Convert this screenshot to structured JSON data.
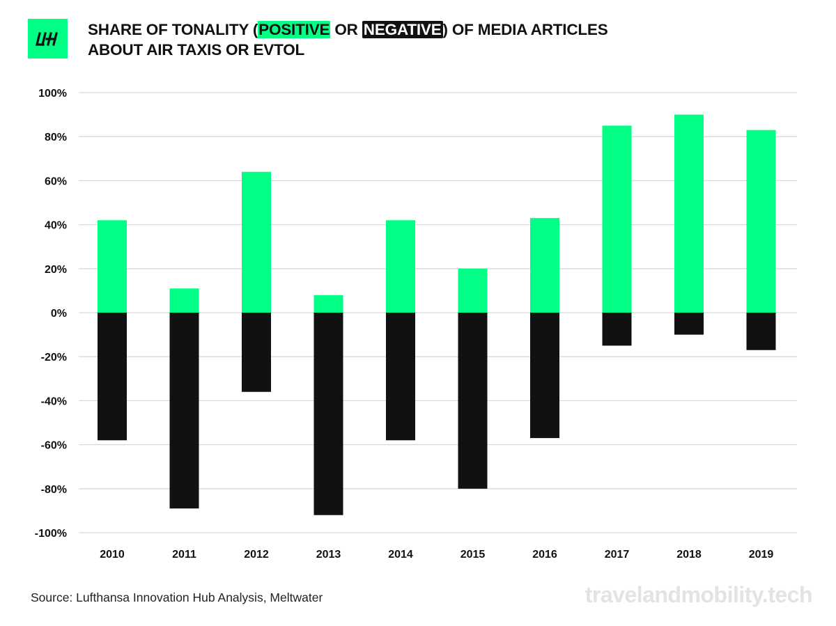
{
  "brand": {
    "logo_text": "LH",
    "logo_color": "#00ff84"
  },
  "title": {
    "line1_prefix": "SHARE OF TONALITY (",
    "positive_label": "POSITIVE",
    "or_text": " OR ",
    "negative_label": "NEGATIVE",
    "line1_suffix": ") OF MEDIA ARTICLES",
    "line2": "ABOUT AIR TAXIS OR EVTOL"
  },
  "chart_data": {
    "type": "bar",
    "title": "SHARE OF TONALITY (POSITIVE OR NEGATIVE) OF MEDIA ARTICLES ABOUT AIR TAXIS OR EVTOL",
    "categories": [
      "2010",
      "2011",
      "2012",
      "2013",
      "2014",
      "2015",
      "2016",
      "2017",
      "2018",
      "2019"
    ],
    "series": [
      {
        "name": "Positive",
        "color": "#00ff84",
        "values": [
          42,
          11,
          64,
          8,
          42,
          20,
          43,
          85,
          90,
          83
        ]
      },
      {
        "name": "Negative",
        "color": "#111111",
        "values": [
          -58,
          -89,
          -36,
          -92,
          -58,
          -80,
          -57,
          -15,
          -10,
          -17
        ]
      }
    ],
    "ylim": [
      -100,
      100
    ],
    "yticks": [
      100,
      80,
      60,
      40,
      20,
      0,
      -20,
      -40,
      -60,
      -80,
      -100
    ],
    "ytick_labels": [
      "100%",
      "80%",
      "60%",
      "40%",
      "20%",
      "0%",
      "-20%",
      "-40%",
      "-60%",
      "-80%",
      "-100%"
    ],
    "xlabel": "",
    "ylabel": "",
    "grid": true
  },
  "footer": {
    "source": "Source: Lufthansa Innovation Hub Analysis, Meltwater",
    "watermark": "travelandmobility.tech"
  }
}
